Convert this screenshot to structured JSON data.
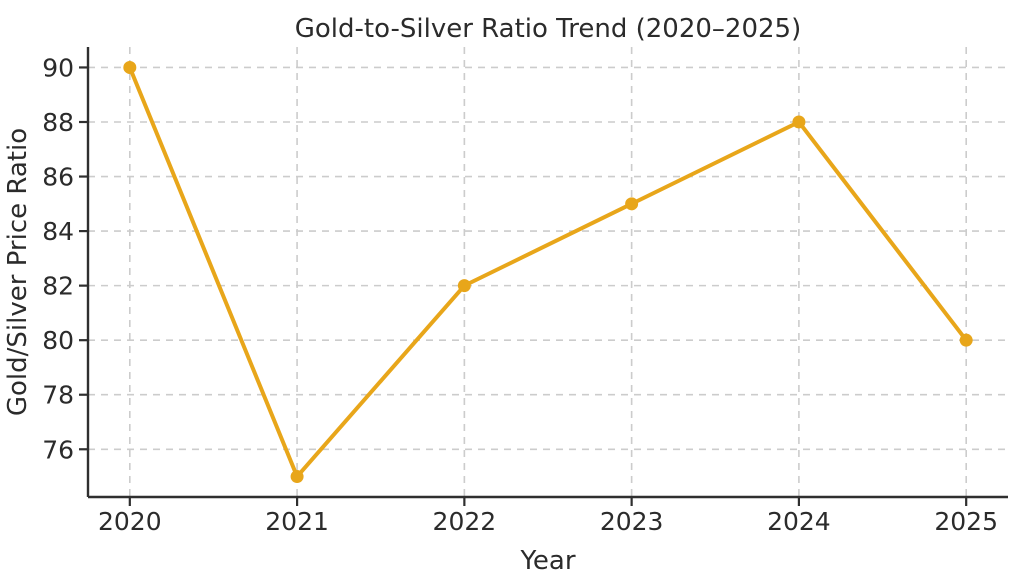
{
  "chart_data": {
    "type": "line",
    "title": "Gold-to-Silver Ratio Trend (2020–2025)",
    "xlabel": "Year",
    "ylabel": "Gold/Silver Price Ratio",
    "x": [
      2020,
      2021,
      2022,
      2023,
      2024,
      2025
    ],
    "values": [
      90,
      75,
      82,
      85,
      88,
      80
    ],
    "xticks": [
      2020,
      2021,
      2022,
      2023,
      2024,
      2025
    ],
    "yticks": [
      76,
      78,
      80,
      82,
      84,
      86,
      88,
      90
    ],
    "xlim": [
      2019.75,
      2025.25
    ],
    "ylim": [
      74.25,
      90.75
    ],
    "grid": true,
    "grid_style": "dashed",
    "legend": "none",
    "marker": "circle",
    "line_color": "#E8A61A",
    "grid_color": "#cccccc",
    "spine_color": "#2f2f2f",
    "text_color": "#2b2b2b",
    "background_color": "#ffffff"
  }
}
